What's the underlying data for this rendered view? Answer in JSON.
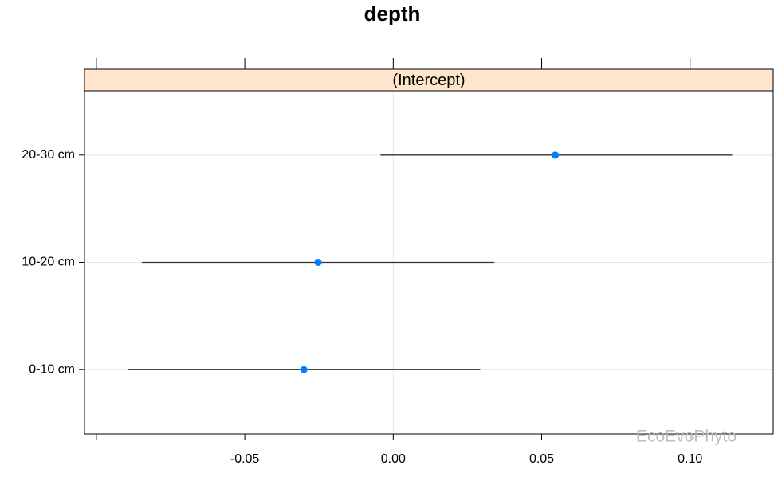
{
  "chart_data": {
    "type": "dotplot",
    "title": "depth",
    "strip": "(Intercept)",
    "categories": [
      "0-10 cm",
      "10-20 cm",
      "20-30 cm"
    ],
    "values": [
      -0.0301,
      -0.0253,
      0.0546
    ],
    "lower": [
      -0.0895,
      -0.0847,
      -0.0043
    ],
    "upper": [
      0.0293,
      0.0341,
      0.1142
    ],
    "color": "#0080ff",
    "bar_color": "#333333",
    "strip_color": "#ffe5cc",
    "xlim": [
      -0.104,
      0.128
    ],
    "xticks": [
      {
        "value": -0.05,
        "label": "-0.05"
      },
      {
        "value": 0,
        "label": "0.00"
      },
      {
        "value": 0.05,
        "label": "0.05"
      },
      {
        "value": 0.1,
        "label": "0.10"
      }
    ],
    "xticks_unlabeled": [
      -0.1
    ],
    "grid": true,
    "watermark": "EcoEvoPhyto"
  }
}
